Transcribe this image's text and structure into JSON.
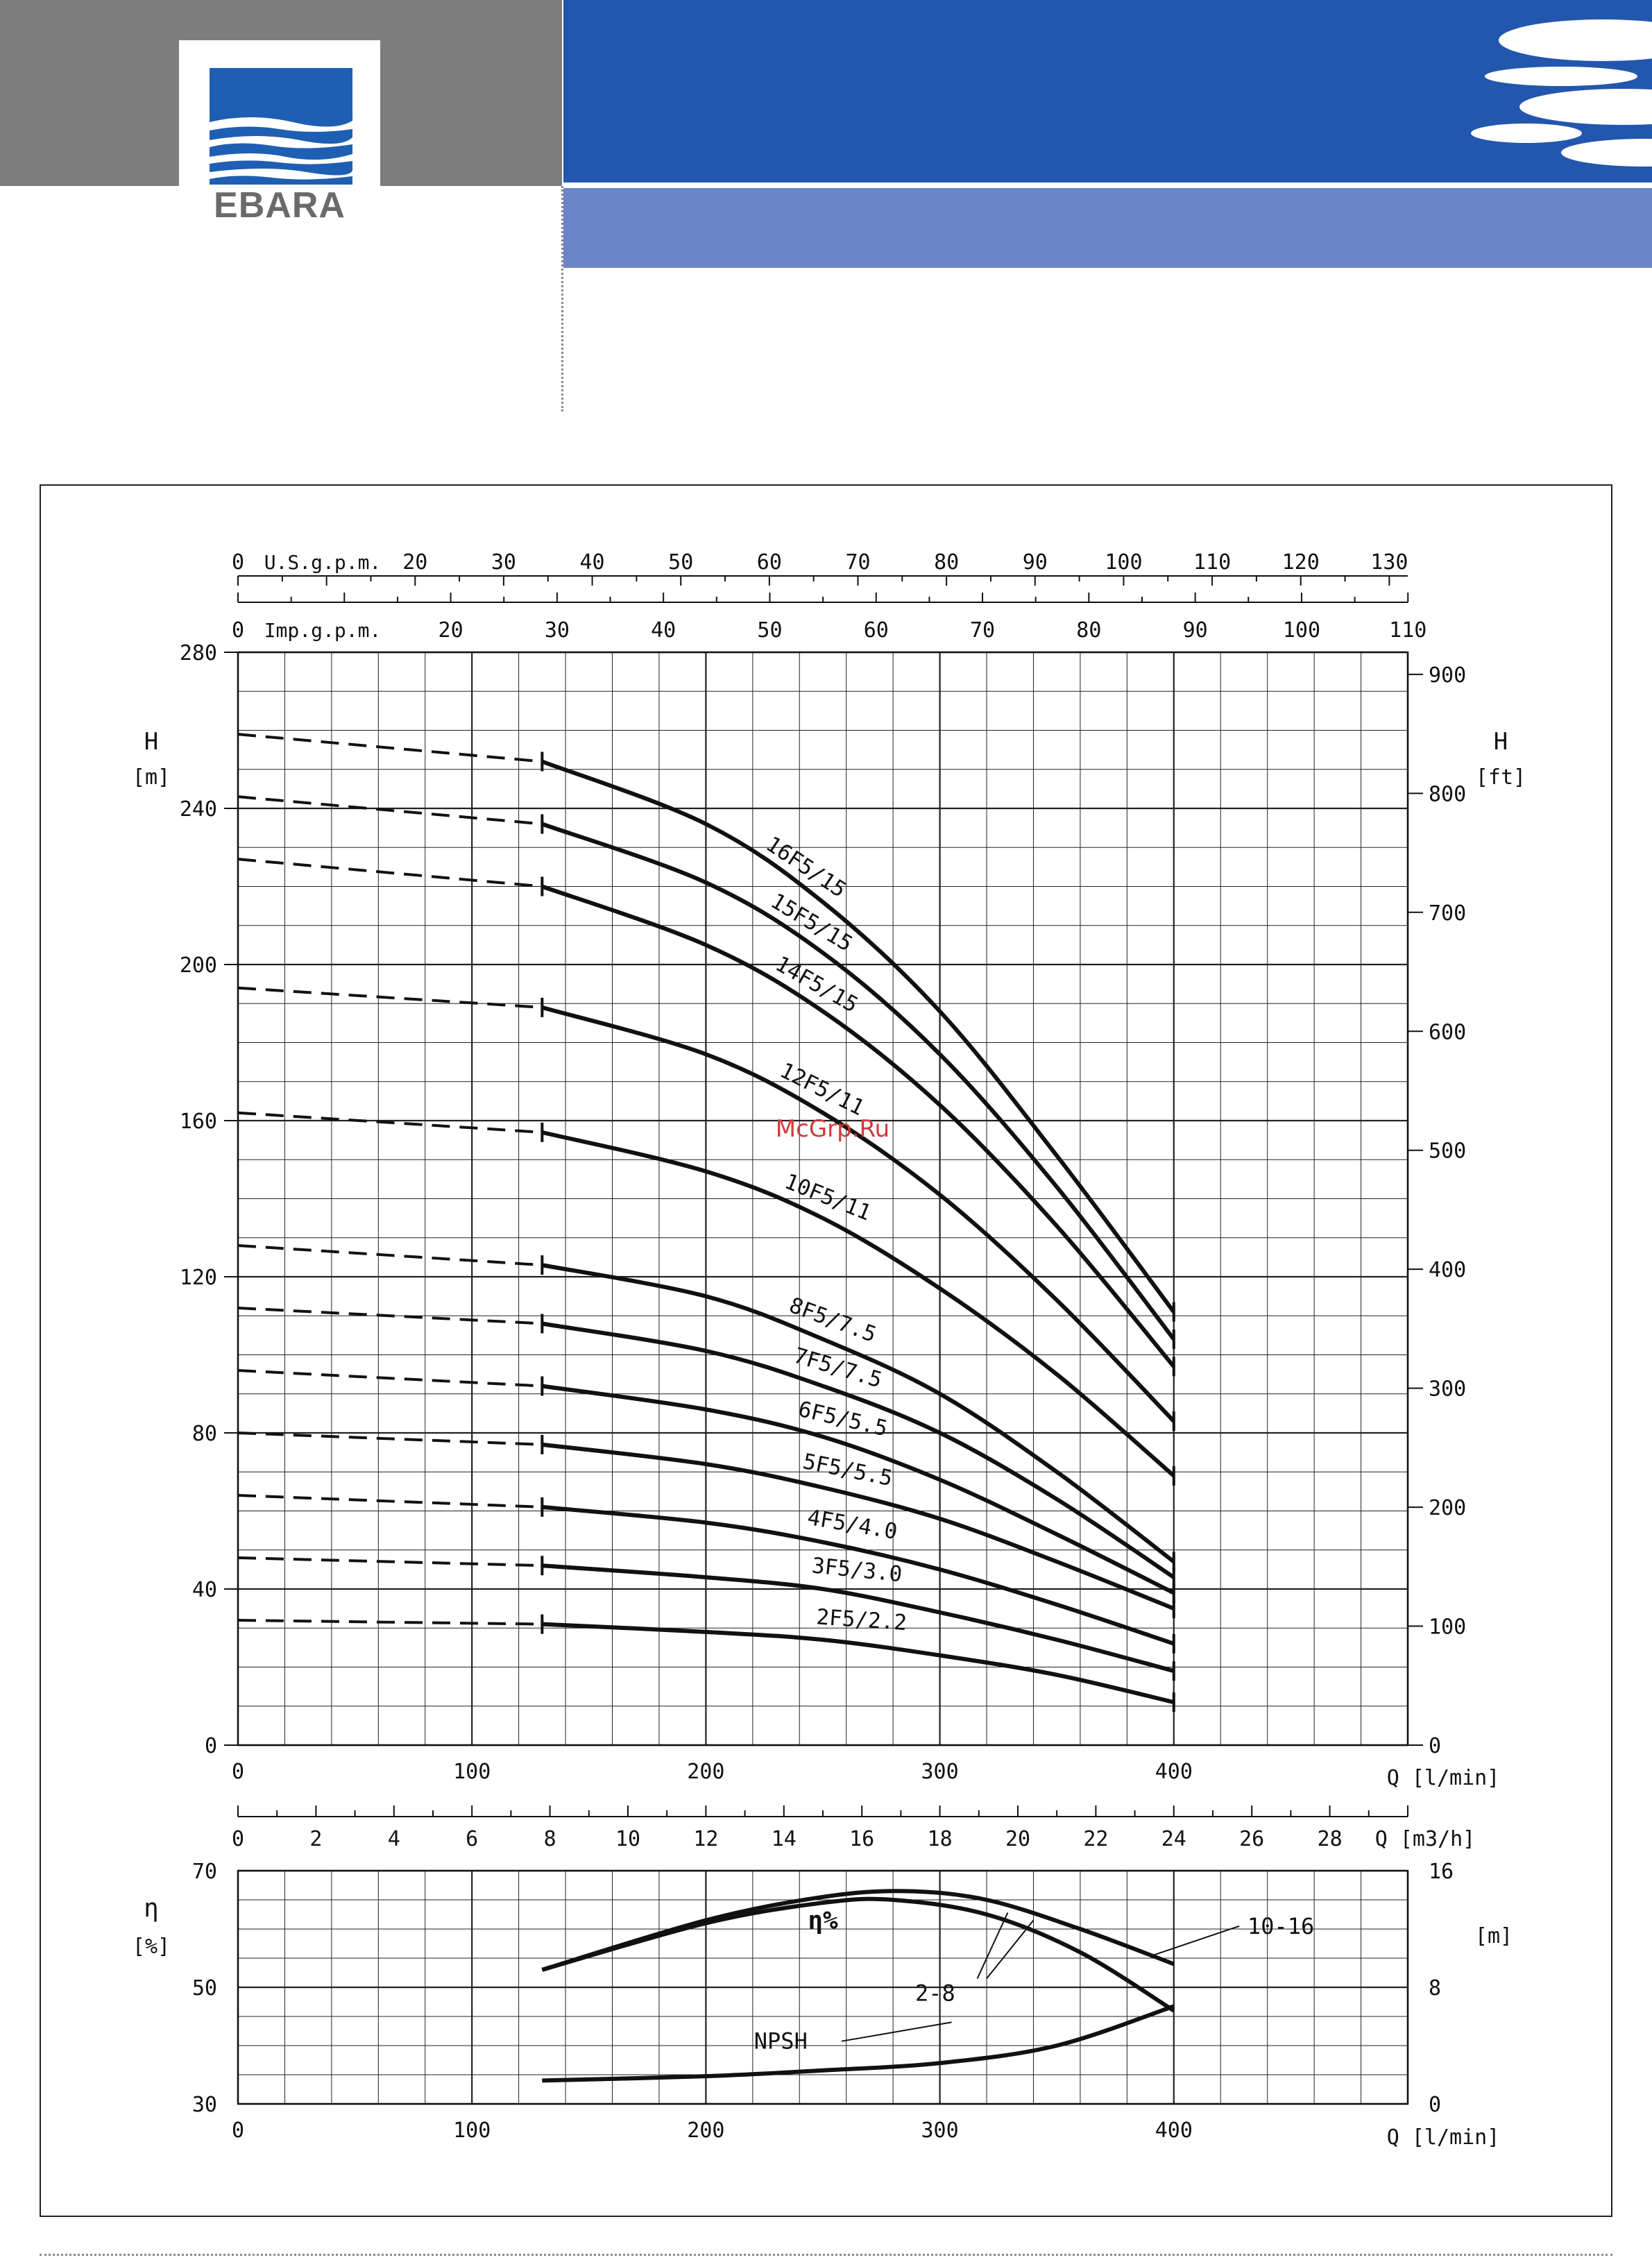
{
  "brand": {
    "logo_text": "EBARA",
    "colors": {
      "header_blue": "#2357ae",
      "header_light": "#6c84c8",
      "header_grey": "#7d7d7d",
      "logo_blue": "#1e5fb4"
    },
    "watermark": "McGrp.Ru"
  },
  "chart_data": [
    {
      "type": "line",
      "title": "",
      "xlabel": "Q [l/min]",
      "ylabel": "H [m]",
      "y2label": "H [ft]",
      "xlim": [
        0,
        500
      ],
      "ylim": [
        0,
        280
      ],
      "y2lim": [
        0,
        918.6
      ],
      "x_ticks": [
        0,
        100,
        200,
        300,
        400
      ],
      "x_tick_labels": [
        "0",
        "100",
        "200",
        "300",
        "400"
      ],
      "y_ticks": [
        0,
        40,
        80,
        120,
        160,
        200,
        240,
        280
      ],
      "y_tick_labels": [
        "0",
        "40",
        "80",
        "120",
        "160",
        "200",
        "240",
        "280"
      ],
      "y2_ticks": [
        0,
        100,
        200,
        300,
        400,
        500,
        600,
        700,
        800,
        900
      ],
      "y2_tick_labels": [
        "0",
        "100",
        "200",
        "300",
        "400",
        "500",
        "600",
        "700",
        "800",
        "900"
      ],
      "top_axes": [
        {
          "label": "U.S.g.p.m.",
          "ticks": [
            0,
            20,
            30,
            40,
            50,
            60,
            70,
            80,
            90,
            100,
            110,
            120,
            130
          ],
          "tick_labels": [
            "0",
            "20",
            "30",
            "40",
            "50",
            "60",
            "70",
            "80",
            "90",
            "100",
            "110",
            "120",
            "130"
          ]
        },
        {
          "label": "Imp.g.p.m.",
          "ticks": [
            0,
            20,
            30,
            40,
            50,
            60,
            70,
            80,
            90,
            100,
            110
          ],
          "tick_labels": [
            "0",
            "20",
            "30",
            "40",
            "50",
            "60",
            "70",
            "80",
            "90",
            "100",
            "110"
          ]
        }
      ],
      "m3h_axis": {
        "label": "Q [m3/h]",
        "ticks": [
          0,
          2,
          4,
          6,
          8,
          10,
          12,
          14,
          16,
          18,
          20,
          22,
          24,
          26,
          28
        ],
        "tick_labels": [
          "0",
          "2",
          "4",
          "6",
          "8",
          "10",
          "12",
          "14",
          "16",
          "18",
          "20",
          "22",
          "24",
          "26",
          "28"
        ]
      },
      "grid": true,
      "operating_range": [
        130,
        400
      ],
      "series": [
        {
          "name": "16F5/15",
          "x": [
            0,
            130,
            200,
            250,
            300,
            350,
            400
          ],
          "y": [
            259,
            252,
            236,
            216,
            188,
            151,
            111
          ]
        },
        {
          "name": "15F5/15",
          "x": [
            0,
            130,
            200,
            250,
            300,
            350,
            400
          ],
          "y": [
            243,
            236,
            221,
            203,
            177,
            143,
            104
          ]
        },
        {
          "name": "14F5/15",
          "x": [
            0,
            130,
            200,
            250,
            300,
            350,
            400
          ],
          "y": [
            227,
            220,
            205,
            188,
            164,
            133,
            97
          ]
        },
        {
          "name": "12F5/11",
          "x": [
            0,
            130,
            200,
            250,
            300,
            350,
            400
          ],
          "y": [
            194,
            189,
            177,
            162,
            141,
            114,
            83
          ]
        },
        {
          "name": "10F5/11",
          "x": [
            0,
            130,
            200,
            250,
            300,
            350,
            400
          ],
          "y": [
            162,
            157,
            147,
            135,
            117,
            95,
            69
          ]
        },
        {
          "name": "8F5/7.5",
          "x": [
            0,
            130,
            200,
            250,
            300,
            350,
            400
          ],
          "y": [
            128,
            123,
            115,
            104,
            90,
            70,
            47
          ]
        },
        {
          "name": "7F5/7.5",
          "x": [
            0,
            130,
            200,
            250,
            300,
            350,
            400
          ],
          "y": [
            112,
            108,
            101,
            92,
            80,
            63,
            43
          ]
        },
        {
          "name": "6F5/5.5",
          "x": [
            0,
            130,
            200,
            250,
            300,
            350,
            400
          ],
          "y": [
            96,
            92,
            86,
            79,
            68,
            54,
            39
          ]
        },
        {
          "name": "5F5/5.5",
          "x": [
            0,
            130,
            200,
            250,
            300,
            350,
            400
          ],
          "y": [
            80,
            77,
            72,
            66,
            58,
            47,
            35
          ]
        },
        {
          "name": "4F5/4.0",
          "x": [
            0,
            130,
            200,
            250,
            300,
            350,
            400
          ],
          "y": [
            64,
            61,
            57,
            52,
            45,
            36,
            26
          ]
        },
        {
          "name": "3F5/3.0",
          "x": [
            0,
            130,
            200,
            250,
            300,
            350,
            400
          ],
          "y": [
            48,
            46,
            43,
            40,
            34,
            27,
            19
          ]
        },
        {
          "name": "2F5/2.2",
          "x": [
            0,
            130,
            200,
            250,
            300,
            350,
            400
          ],
          "y": [
            32,
            31,
            29,
            27,
            23,
            18,
            11
          ]
        }
      ]
    },
    {
      "type": "line",
      "title": "",
      "xlabel": "Q [l/min]",
      "ylabel": "η [%]",
      "y2label": "[m]",
      "xlim": [
        0,
        500
      ],
      "ylim": [
        30,
        70
      ],
      "y2lim": [
        0,
        16
      ],
      "x_ticks": [
        0,
        100,
        200,
        300,
        400
      ],
      "x_tick_labels": [
        "0",
        "100",
        "200",
        "300",
        "400"
      ],
      "y_ticks": [
        30,
        50,
        70
      ],
      "y_tick_labels": [
        "30",
        "50",
        "70"
      ],
      "y2_ticks": [
        0,
        8,
        16
      ],
      "y2_tick_labels": [
        "0",
        "8",
        "16"
      ],
      "grid": true,
      "series_label": "η%",
      "series": [
        {
          "name": "10-16",
          "axis": "left",
          "x": [
            130,
            200,
            250,
            285,
            320,
            360,
            400
          ],
          "y": [
            53,
            61.5,
            65.5,
            66.5,
            65,
            60,
            54
          ]
        },
        {
          "name": "2-8",
          "axis": "left",
          "x": [
            130,
            200,
            250,
            280,
            320,
            360,
            400
          ],
          "y": [
            53,
            61,
            64.5,
            65,
            62.5,
            56,
            46
          ]
        },
        {
          "name": "NPSH",
          "axis": "right",
          "x": [
            130,
            200,
            250,
            300,
            350,
            400
          ],
          "y": [
            1.6,
            1.9,
            2.3,
            2.8,
            4.0,
            6.7
          ]
        }
      ]
    }
  ]
}
